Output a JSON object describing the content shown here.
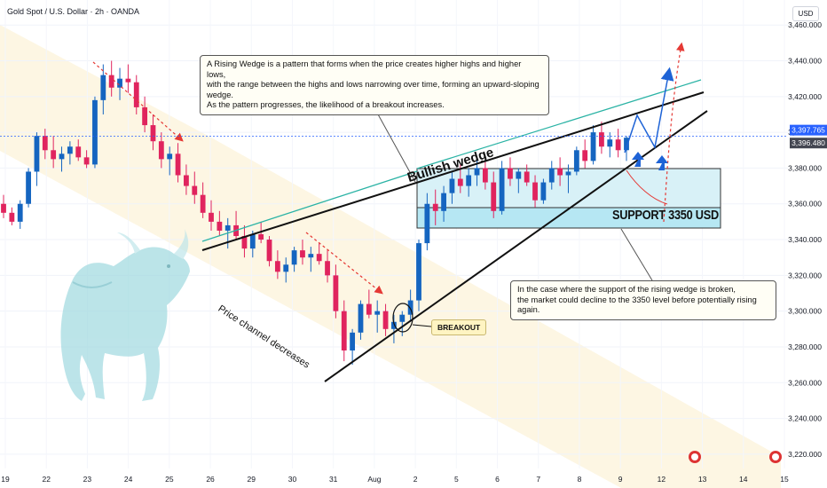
{
  "header": {
    "symbol_line": "Gold Spot / U.S. Dollar · 2h · OANDA",
    "currency": "USD"
  },
  "annotations": {
    "wedge_note": [
      "A Rising Wedge is a pattern that forms when the price creates higher highs and higher lows,",
      "with the range between the highs and lows narrowing over time, forming an upward-sloping wedge.",
      " As the pattern progresses, the likelihood of a breakout increases."
    ],
    "support_note": [
      "In the case where the support of the rising wedge is broken,",
      "the market could decline to the 3350 level before potentially rising again."
    ],
    "breakout_label": "BREAKOUT",
    "support_label": "SUPPORT 3350 USD",
    "wedge_label": "Bullish wedge",
    "channel_label": "Price channel decreases"
  },
  "chart_data": {
    "type": "candlestick",
    "x_ticks": [
      "19",
      "22",
      "23",
      "24",
      "25",
      "26",
      "29",
      "30",
      "31",
      "Aug",
      "2",
      "5",
      "6",
      "7",
      "8",
      "9",
      "12",
      "13",
      "14",
      "15"
    ],
    "y_ticks": [
      3220,
      3240,
      3260,
      3280,
      3300,
      3320,
      3340,
      3360,
      3380,
      3400,
      3420,
      3440,
      3460
    ],
    "ylim": [
      3212,
      3474
    ],
    "price_labels": [
      {
        "value": 3397.765,
        "text": "3,397.765",
        "color": "#2962ff"
      },
      {
        "value": 3396.48,
        "text": "3,396.480",
        "color": "#434651"
      }
    ],
    "candles": [
      [
        3360,
        3365,
        3352,
        3355
      ],
      [
        3355,
        3358,
        3348,
        3350
      ],
      [
        3350,
        3362,
        3346,
        3360
      ],
      [
        3360,
        3380,
        3358,
        3378
      ],
      [
        3378,
        3400,
        3370,
        3398
      ],
      [
        3398,
        3402,
        3385,
        3390
      ],
      [
        3390,
        3398,
        3380,
        3385
      ],
      [
        3385,
        3392,
        3378,
        3388
      ],
      [
        3388,
        3395,
        3382,
        3392
      ],
      [
        3392,
        3396,
        3384,
        3386
      ],
      [
        3386,
        3390,
        3380,
        3382
      ],
      [
        3382,
        3420,
        3380,
        3418
      ],
      [
        3418,
        3438,
        3410,
        3432
      ],
      [
        3432,
        3440,
        3420,
        3425
      ],
      [
        3425,
        3436,
        3418,
        3430
      ],
      [
        3430,
        3438,
        3422,
        3428
      ],
      [
        3428,
        3432,
        3410,
        3414
      ],
      [
        3414,
        3420,
        3400,
        3404
      ],
      [
        3404,
        3410,
        3390,
        3395
      ],
      [
        3395,
        3400,
        3380,
        3385
      ],
      [
        3385,
        3392,
        3376,
        3388
      ],
      [
        3388,
        3394,
        3372,
        3376
      ],
      [
        3376,
        3382,
        3365,
        3370
      ],
      [
        3370,
        3378,
        3360,
        3365
      ],
      [
        3365,
        3372,
        3352,
        3355
      ],
      [
        3355,
        3362,
        3345,
        3350
      ],
      [
        3350,
        3356,
        3342,
        3345
      ],
      [
        3345,
        3352,
        3335,
        3348
      ],
      [
        3348,
        3356,
        3340,
        3342
      ],
      [
        3342,
        3348,
        3330,
        3335
      ],
      [
        3335,
        3345,
        3330,
        3343
      ],
      [
        3343,
        3350,
        3338,
        3340
      ],
      [
        3340,
        3342,
        3325,
        3328
      ],
      [
        3328,
        3334,
        3318,
        3322
      ],
      [
        3322,
        3330,
        3316,
        3326
      ],
      [
        3326,
        3336,
        3322,
        3334
      ],
      [
        3334,
        3340,
        3326,
        3330
      ],
      [
        3330,
        3336,
        3322,
        3332
      ],
      [
        3332,
        3338,
        3326,
        3328
      ],
      [
        3328,
        3334,
        3316,
        3320
      ],
      [
        3320,
        3326,
        3296,
        3300
      ],
      [
        3300,
        3306,
        3272,
        3278
      ],
      [
        3278,
        3290,
        3270,
        3288
      ],
      [
        3288,
        3306,
        3284,
        3304
      ],
      [
        3304,
        3312,
        3296,
        3298
      ],
      [
        3298,
        3306,
        3288,
        3300
      ],
      [
        3300,
        3304,
        3286,
        3290
      ],
      [
        3290,
        3298,
        3282,
        3294
      ],
      [
        3294,
        3300,
        3286,
        3298
      ],
      [
        3298,
        3312,
        3294,
        3306
      ],
      [
        3306,
        3340,
        3300,
        3338
      ],
      [
        3338,
        3366,
        3334,
        3360
      ],
      [
        3360,
        3368,
        3348,
        3356
      ],
      [
        3356,
        3370,
        3350,
        3366
      ],
      [
        3366,
        3378,
        3360,
        3374
      ],
      [
        3374,
        3382,
        3366,
        3370
      ],
      [
        3370,
        3380,
        3364,
        3376
      ],
      [
        3376,
        3386,
        3370,
        3380
      ],
      [
        3380,
        3384,
        3368,
        3372
      ],
      [
        3372,
        3378,
        3352,
        3356
      ],
      [
        3356,
        3384,
        3354,
        3380
      ],
      [
        3380,
        3386,
        3370,
        3374
      ],
      [
        3374,
        3380,
        3366,
        3378
      ],
      [
        3378,
        3382,
        3370,
        3372
      ],
      [
        3372,
        3376,
        3358,
        3362
      ],
      [
        3362,
        3374,
        3360,
        3372
      ],
      [
        3372,
        3384,
        3368,
        3380
      ],
      [
        3380,
        3386,
        3370,
        3376
      ],
      [
        3376,
        3382,
        3366,
        3378
      ],
      [
        3378,
        3392,
        3376,
        3390
      ],
      [
        3390,
        3396,
        3380,
        3384
      ],
      [
        3384,
        3404,
        3382,
        3400
      ],
      [
        3400,
        3406,
        3388,
        3392
      ],
      [
        3392,
        3400,
        3386,
        3396
      ],
      [
        3396,
        3402,
        3386,
        3390
      ],
      [
        3390,
        3398,
        3384,
        3397
      ]
    ]
  }
}
